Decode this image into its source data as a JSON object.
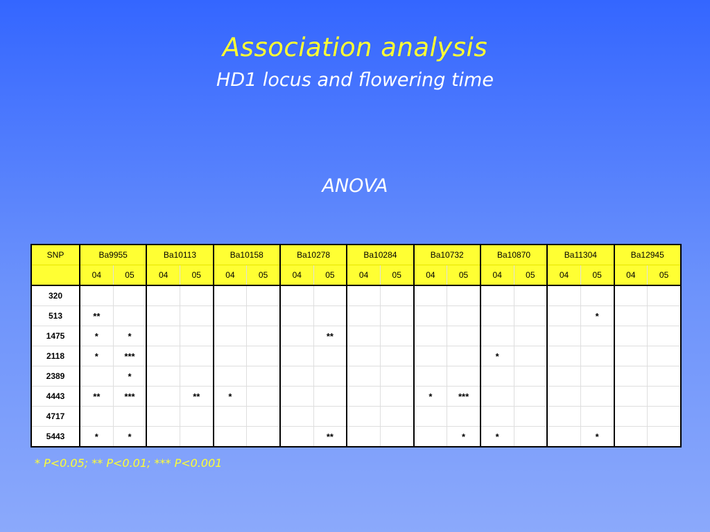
{
  "slide": {
    "title": "Association analysis",
    "subtitle": "HD1 locus and flowering time",
    "section_label": "ANOVA",
    "footnote": "* P<0.05; ** P<0.01; *** P<0.001"
  },
  "table": {
    "first_header": "SNP",
    "markers": [
      "Ba9955",
      "Ba10113",
      "Ba10158",
      "Ba10278",
      "Ba10284",
      "Ba10732",
      "Ba10870",
      "Ba11304",
      "Ba12945"
    ],
    "years": [
      "04",
      "05"
    ],
    "rows": [
      {
        "snp": "320",
        "cells": [
          "",
          "",
          "",
          "",
          "",
          "",
          "",
          "",
          "",
          "",
          "",
          "",
          "",
          "",
          "",
          "",
          "",
          ""
        ]
      },
      {
        "snp": "513",
        "cells": [
          "**",
          "",
          "",
          "",
          "",
          "",
          "",
          "",
          "",
          "",
          "",
          "",
          "",
          "",
          "",
          "*",
          "",
          ""
        ]
      },
      {
        "snp": "1475",
        "cells": [
          "*",
          "*",
          "",
          "",
          "",
          "",
          "",
          "**",
          "",
          "",
          "",
          "",
          "",
          "",
          "",
          "",
          "",
          ""
        ]
      },
      {
        "snp": "2118",
        "cells": [
          "*",
          "***",
          "",
          "",
          "",
          "",
          "",
          "",
          "",
          "",
          "",
          "",
          "*",
          "",
          "",
          "",
          "",
          ""
        ]
      },
      {
        "snp": "2389",
        "cells": [
          "",
          "*",
          "",
          "",
          "",
          "",
          "",
          "",
          "",
          "",
          "",
          "",
          "",
          "",
          "",
          "",
          "",
          ""
        ]
      },
      {
        "snp": "4443",
        "cells": [
          "**",
          "***",
          "",
          "**",
          "*",
          "",
          "",
          "",
          "",
          "",
          "*",
          "***",
          "",
          "",
          "",
          "",
          "",
          ""
        ]
      },
      {
        "snp": "4717",
        "cells": [
          "",
          "",
          "",
          "",
          "",
          "",
          "",
          "",
          "",
          "",
          "",
          "",
          "",
          "",
          "",
          "",
          "",
          ""
        ]
      },
      {
        "snp": "5443",
        "cells": [
          "*",
          "*",
          "",
          "",
          "",
          "",
          "",
          "**",
          "",
          "",
          "",
          "*",
          "*",
          "",
          "",
          "*",
          "",
          ""
        ]
      }
    ]
  }
}
